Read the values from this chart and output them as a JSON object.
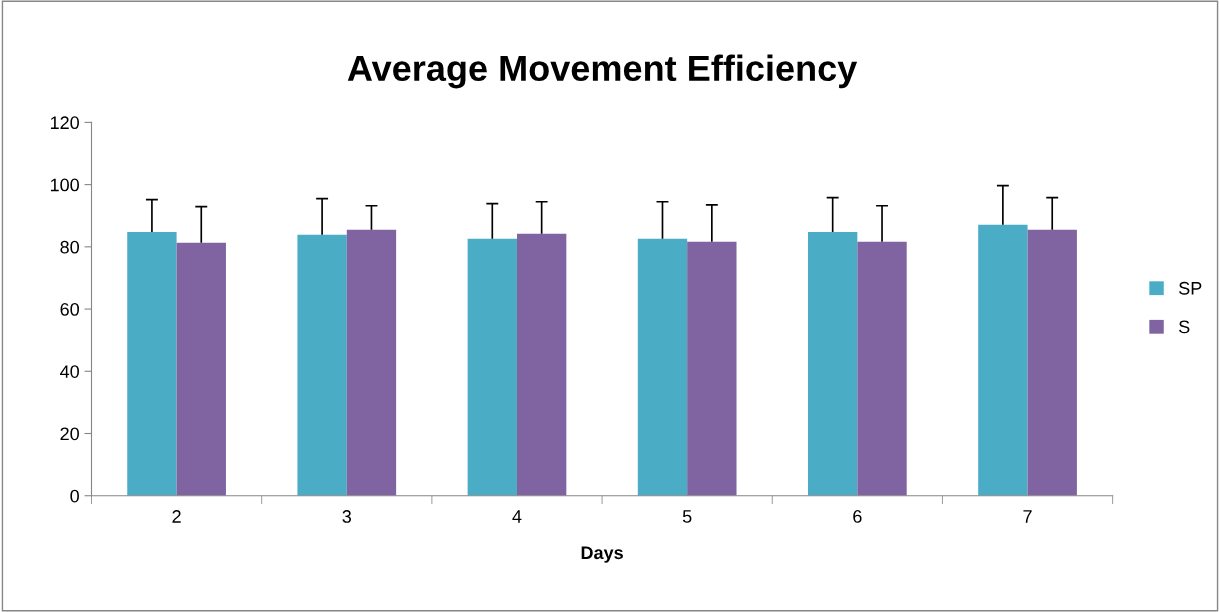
{
  "chart_data": {
    "type": "bar",
    "title": "Average Movement Efficiency",
    "xlabel": "Days",
    "categories": [
      "2",
      "3",
      "4",
      "5",
      "6",
      "7"
    ],
    "series": [
      {
        "name": "SP",
        "color": "#4bacc6",
        "values": [
          84.8,
          83.9,
          82.6,
          82.6,
          84.8,
          87.1
        ],
        "errors": [
          [
            84.8,
            95.2
          ],
          [
            83.9,
            95.5
          ],
          [
            82.6,
            93.9
          ],
          [
            82.6,
            94.5
          ],
          [
            84.8,
            95.8
          ],
          [
            87.1,
            99.7
          ]
        ]
      },
      {
        "name": "S",
        "color": "#8064a2",
        "values": [
          81.3,
          85.5,
          84.2,
          81.6,
          81.6,
          85.5
        ],
        "errors": [
          [
            81.3,
            92.9
          ],
          [
            85.5,
            93.2
          ],
          [
            84.2,
            94.5
          ],
          [
            81.6,
            93.5
          ],
          [
            81.6,
            93.2
          ],
          [
            85.5,
            95.8
          ]
        ]
      }
    ],
    "ylim": [
      0,
      120
    ],
    "yticks": [
      0,
      20,
      40,
      60,
      80,
      100,
      120
    ],
    "grid": false,
    "legend": "right"
  }
}
